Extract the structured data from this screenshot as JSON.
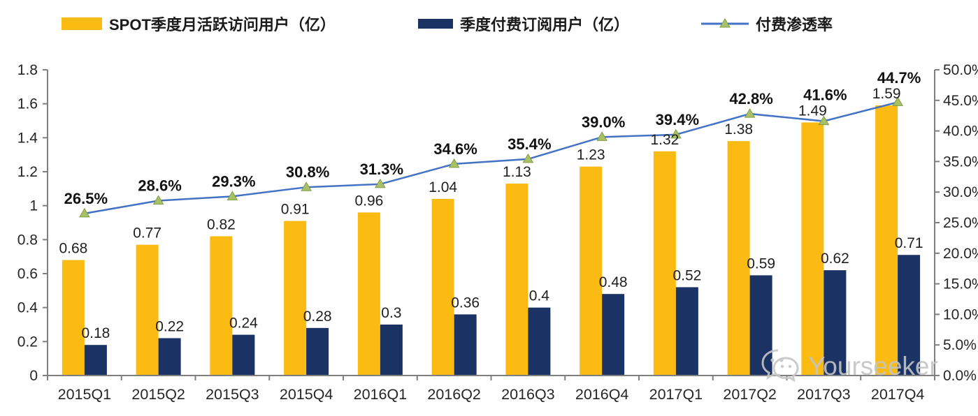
{
  "legend": [
    {
      "label": "SPOT季度月活跃访问用户（亿）",
      "color": "#FBBB13",
      "type": "bar"
    },
    {
      "label": "季度付费订阅用户（亿）",
      "color": "#1A3264",
      "type": "bar"
    },
    {
      "label": "付费渗透率",
      "color": "#4472C4",
      "marker_color": "#A8C169",
      "type": "line"
    }
  ],
  "watermark": {
    "text": "Yourseeker",
    "icon": "wechat-icon"
  },
  "chart_data": {
    "type": "bar+line",
    "categories": [
      "2015Q1",
      "2015Q2",
      "2015Q3",
      "2015Q4",
      "2016Q1",
      "2016Q2",
      "2016Q3",
      "2016Q4",
      "2017Q1",
      "2017Q2",
      "2017Q3",
      "2017Q4"
    ],
    "series": [
      {
        "name": "SPOT季度月活跃访问用户（亿）",
        "type": "bar",
        "axis": "left",
        "color": "#FBBB13",
        "values": [
          0.68,
          0.77,
          0.82,
          0.91,
          0.96,
          1.04,
          1.13,
          1.23,
          1.32,
          1.38,
          1.49,
          1.59
        ],
        "labels": [
          "0.68",
          "0.77",
          "0.82",
          "0.91",
          "0.96",
          "1.04",
          "1.13",
          "1.23",
          "1.32",
          "1.38",
          "1.49",
          "1.59"
        ]
      },
      {
        "name": "季度付费订阅用户（亿）",
        "type": "bar",
        "axis": "left",
        "color": "#1A3264",
        "values": [
          0.18,
          0.22,
          0.24,
          0.28,
          0.3,
          0.36,
          0.4,
          0.48,
          0.52,
          0.59,
          0.62,
          0.71
        ],
        "labels": [
          "0.18",
          "0.22",
          "0.24",
          "0.28",
          "0.3",
          "0.36",
          "0.4",
          "0.48",
          "0.52",
          "0.59",
          "0.62",
          "0.71"
        ]
      },
      {
        "name": "付费渗透率",
        "type": "line",
        "axis": "right",
        "color": "#4472C4",
        "marker": "triangle",
        "marker_color": "#A8C169",
        "values": [
          26.5,
          28.6,
          29.3,
          30.8,
          31.3,
          34.6,
          35.4,
          39.0,
          39.4,
          42.8,
          41.6,
          44.7
        ],
        "labels": [
          "26.5%",
          "28.6%",
          "29.3%",
          "30.8%",
          "31.3%",
          "34.6%",
          "35.4%",
          "39.0%",
          "39.4%",
          "42.8%",
          "41.6%",
          "44.7%"
        ]
      }
    ],
    "left_axis": {
      "min": 0,
      "max": 1.8,
      "step": 0.2,
      "tick_labels": [
        "0",
        "0.2",
        "0.4",
        "0.6",
        "0.8",
        "1",
        "1.2",
        "1.4",
        "1.6",
        "1.8"
      ]
    },
    "right_axis": {
      "min": 0,
      "max": 50,
      "step": 5,
      "tick_labels": [
        "0.0%",
        "5.0%",
        "10.0%",
        "15.0%",
        "20.0%",
        "25.0%",
        "30.0%",
        "35.0%",
        "40.0%",
        "45.0%",
        "50.0%"
      ]
    },
    "legend_position": "top",
    "grid": false
  }
}
